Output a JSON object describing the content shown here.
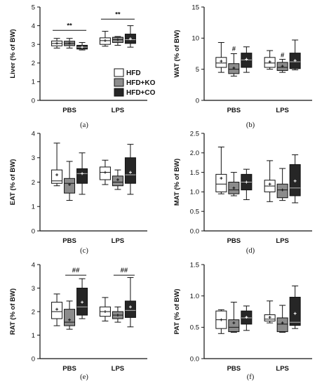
{
  "colors": {
    "HFD": "#ffffff",
    "HFD+KO": "#8c8c8c",
    "HFD+CO": "#262626",
    "stroke": "#111111"
  },
  "legend": {
    "items": [
      {
        "label": "HFD",
        "color": "#ffffff"
      },
      {
        "label": "HFD+KO",
        "color": "#8c8c8c"
      },
      {
        "label": "HFD+CO",
        "color": "#262626"
      }
    ]
  },
  "chart_data": [
    {
      "type": "boxplot",
      "panel": "(a)",
      "ylabel": "Liver (% of BW)",
      "ylim": [
        0,
        5
      ],
      "yticks": [
        0,
        1,
        2,
        3,
        4,
        5
      ],
      "ytick_labels": [
        "0",
        "1",
        "2",
        "3",
        "4",
        "5"
      ],
      "groups": [
        "PBS",
        "LPS"
      ],
      "series": [
        {
          "name": "HFD",
          "boxes": [
            {
              "whisker_low": 2.8,
              "q1": 2.92,
              "median": 3.05,
              "q3": 3.18,
              "whisker_high": 3.32,
              "mean": 3.06
            },
            {
              "whisker_low": 2.9,
              "q1": 3.0,
              "median": 3.2,
              "q3": 3.35,
              "whisker_high": 3.7,
              "mean": 3.2
            }
          ]
        },
        {
          "name": "HFD+KO",
          "boxes": [
            {
              "whisker_low": 2.8,
              "q1": 2.93,
              "median": 3.05,
              "q3": 3.17,
              "whisker_high": 3.32,
              "mean": 3.06
            },
            {
              "whisker_low": 2.95,
              "q1": 3.1,
              "median": 3.25,
              "q3": 3.38,
              "whisker_high": 3.42,
              "mean": 3.25
            }
          ]
        },
        {
          "name": "HFD+CO",
          "boxes": [
            {
              "whisker_low": 2.7,
              "q1": 2.75,
              "median": 2.85,
              "q3": 2.95,
              "whisker_high": 3.1,
              "mean": 2.85
            },
            {
              "whisker_low": 2.85,
              "q1": 3.05,
              "median": 3.25,
              "q3": 3.55,
              "whisker_high": 4.0,
              "mean": 3.3
            }
          ]
        }
      ],
      "significance": [
        {
          "label": "**",
          "from_group": 0,
          "from_series": 0,
          "to_group": 0,
          "to_series": 2,
          "y": 3.75
        },
        {
          "label": "**",
          "from_group": 1,
          "from_series": 0,
          "to_group": 1,
          "to_series": 2,
          "y": 4.35
        }
      ],
      "legend": true
    },
    {
      "type": "boxplot",
      "panel": "(b)",
      "ylabel": "WAT  (% of BW)",
      "ylim": [
        0,
        15
      ],
      "yticks": [
        0,
        5,
        10,
        15
      ],
      "ytick_labels": [
        "0",
        "5",
        "10",
        "15"
      ],
      "groups": [
        "PBS",
        "LPS"
      ],
      "series": [
        {
          "name": "HFD",
          "boxes": [
            {
              "whisker_low": 4.5,
              "q1": 5.3,
              "median": 6.0,
              "q3": 6.9,
              "whisker_high": 9.3,
              "mean": 6.3
            },
            {
              "whisker_low": 5.0,
              "q1": 5.3,
              "median": 6.0,
              "q3": 6.9,
              "whisker_high": 8.0,
              "mean": 6.2
            }
          ]
        },
        {
          "name": "HFD+KO",
          "boxes": [
            {
              "whisker_low": 3.9,
              "q1": 4.3,
              "median": 5.0,
              "q3": 5.9,
              "whisker_high": 7.5,
              "mean": 5.2
            },
            {
              "whisker_low": 4.5,
              "q1": 4.8,
              "median": 5.3,
              "q3": 6.1,
              "whisker_high": 6.6,
              "mean": 5.5
            }
          ]
        },
        {
          "name": "HFD+CO",
          "boxes": [
            {
              "whisker_low": 4.5,
              "q1": 5.3,
              "median": 6.5,
              "q3": 7.6,
              "whisker_high": 8.6,
              "mean": 6.6
            },
            {
              "whisker_low": 4.9,
              "q1": 5.1,
              "median": 6.2,
              "q3": 7.6,
              "whisker_high": 9.7,
              "mean": 6.4
            }
          ]
        }
      ],
      "annotations": [
        {
          "label": "#",
          "group": 0,
          "series": 1,
          "y": 8.3
        },
        {
          "label": "#",
          "group": 1,
          "series": 1,
          "y": 7.3
        }
      ]
    },
    {
      "type": "boxplot",
      "panel": "(c)",
      "ylabel": "EAT (% of BW)",
      "ylim": [
        0,
        4
      ],
      "yticks": [
        0,
        1,
        2,
        3,
        4
      ],
      "ytick_labels": [
        "0",
        "1",
        "2",
        "3",
        "4"
      ],
      "groups": [
        "PBS",
        "LPS"
      ],
      "series": [
        {
          "name": "HFD",
          "boxes": [
            {
              "whisker_low": 1.85,
              "q1": 1.95,
              "median": 2.05,
              "q3": 2.5,
              "whisker_high": 3.6,
              "mean": 2.3
            },
            {
              "whisker_low": 1.9,
              "q1": 2.1,
              "median": 2.4,
              "q3": 2.62,
              "whisker_high": 2.9,
              "mean": 2.4
            }
          ]
        },
        {
          "name": "HFD+KO",
          "boxes": [
            {
              "whisker_low": 1.25,
              "q1": 1.55,
              "median": 1.95,
              "q3": 2.15,
              "whisker_high": 2.85,
              "mean": 1.9
            },
            {
              "whisker_low": 1.7,
              "q1": 1.85,
              "median": 2.0,
              "q3": 2.25,
              "whisker_high": 2.5,
              "mean": 2.1
            }
          ]
        },
        {
          "name": "HFD+CO",
          "boxes": [
            {
              "whisker_low": 1.5,
              "q1": 1.95,
              "median": 2.35,
              "q3": 2.55,
              "whisker_high": 3.2,
              "mean": 2.35
            },
            {
              "whisker_low": 1.5,
              "q1": 1.95,
              "median": 2.3,
              "q3": 3.0,
              "whisker_high": 3.55,
              "mean": 2.4
            }
          ]
        }
      ]
    },
    {
      "type": "boxplot",
      "panel": "(d)",
      "ylabel": "MAT (% of BW)",
      "ylim": [
        0,
        2.5
      ],
      "yticks": [
        0,
        0.5,
        1.0,
        1.5,
        2.0,
        2.5
      ],
      "ytick_labels": [
        "0.0",
        "0.5",
        "1.0",
        "1.5",
        "2.0",
        "2.5"
      ],
      "groups": [
        "PBS",
        "LPS"
      ],
      "series": [
        {
          "name": "HFD",
          "boxes": [
            {
              "whisker_low": 0.95,
              "q1": 1.0,
              "median": 1.2,
              "q3": 1.45,
              "whisker_high": 2.15,
              "mean": 1.35
            },
            {
              "whisker_low": 0.75,
              "q1": 1.0,
              "median": 1.15,
              "q3": 1.3,
              "whisker_high": 1.8,
              "mean": 1.2
            }
          ]
        },
        {
          "name": "HFD+KO",
          "boxes": [
            {
              "whisker_low": 0.9,
              "q1": 0.95,
              "median": 1.05,
              "q3": 1.25,
              "whisker_high": 1.5,
              "mean": 1.1
            },
            {
              "whisker_low": 0.78,
              "q1": 0.85,
              "median": 1.05,
              "q3": 1.2,
              "whisker_high": 1.6,
              "mean": 1.05
            }
          ]
        },
        {
          "name": "HFD+CO",
          "boxes": [
            {
              "whisker_low": 0.8,
              "q1": 1.05,
              "median": 1.25,
              "q3": 1.45,
              "whisker_high": 1.58,
              "mean": 1.25
            },
            {
              "whisker_low": 0.72,
              "q1": 0.9,
              "median": 1.1,
              "q3": 1.7,
              "whisker_high": 1.95,
              "mean": 1.28
            }
          ]
        }
      ]
    },
    {
      "type": "boxplot",
      "panel": "(e)",
      "ylabel": "RAT (% of BW)",
      "ylim": [
        0,
        4
      ],
      "yticks": [
        0,
        1,
        2,
        3,
        4
      ],
      "ytick_labels": [
        "0",
        "1",
        "2",
        "3",
        "4"
      ],
      "groups": [
        "PBS",
        "LPS"
      ],
      "series": [
        {
          "name": "HFD",
          "boxes": [
            {
              "whisker_low": 1.4,
              "q1": 1.7,
              "median": 2.0,
              "q3": 2.4,
              "whisker_high": 2.75,
              "mean": 2.1
            },
            {
              "whisker_low": 1.6,
              "q1": 1.8,
              "median": 2.0,
              "q3": 2.2,
              "whisker_high": 2.6,
              "mean": 2.0
            }
          ]
        },
        {
          "name": "HFD+KO",
          "boxes": [
            {
              "whisker_low": 1.25,
              "q1": 1.4,
              "median": 1.55,
              "q3": 2.1,
              "whisker_high": 2.45,
              "mean": 1.65
            },
            {
              "whisker_low": 1.55,
              "q1": 1.7,
              "median": 1.85,
              "q3": 2.0,
              "whisker_high": 2.2,
              "mean": 1.85
            }
          ]
        },
        {
          "name": "HFD+CO",
          "boxes": [
            {
              "whisker_low": 1.7,
              "q1": 1.85,
              "median": 2.2,
              "q3": 3.0,
              "whisker_high": 3.4,
              "mean": 2.4
            },
            {
              "whisker_low": 1.35,
              "q1": 1.75,
              "median": 2.05,
              "q3": 2.45,
              "whisker_high": 3.45,
              "mean": 2.2
            }
          ]
        }
      ],
      "significance": [
        {
          "label": "##",
          "from_group": 0,
          "from_series": 1,
          "to_group": 0,
          "to_series": 2,
          "y": 3.55
        },
        {
          "label": "##",
          "from_group": 1,
          "from_series": 1,
          "to_group": 1,
          "to_series": 2,
          "y": 3.55
        }
      ]
    },
    {
      "type": "boxplot",
      "panel": "(f)",
      "ylabel": "PAT (% of BW)",
      "ylim": [
        0,
        1.5
      ],
      "yticks": [
        0,
        0.5,
        1.0,
        1.5
      ],
      "ytick_labels": [
        "0.0",
        "0.5",
        "1.0",
        "1.5"
      ],
      "groups": [
        "PBS",
        "LPS"
      ],
      "series": [
        {
          "name": "HFD",
          "boxes": [
            {
              "whisker_low": 0.4,
              "q1": 0.48,
              "median": 0.62,
              "q3": 0.76,
              "whisker_high": 0.78,
              "mean": 0.62
            },
            {
              "whisker_low": 0.57,
              "q1": 0.6,
              "median": 0.63,
              "q3": 0.7,
              "whisker_high": 0.92,
              "mean": 0.66
            }
          ]
        },
        {
          "name": "HFD+KO",
          "boxes": [
            {
              "whisker_low": 0.42,
              "q1": 0.43,
              "median": 0.5,
              "q3": 0.62,
              "whisker_high": 0.9,
              "mean": 0.57
            },
            {
              "whisker_low": 0.42,
              "q1": 0.43,
              "median": 0.55,
              "q3": 0.65,
              "whisker_high": 0.85,
              "mean": 0.57
            }
          ]
        },
        {
          "name": "HFD+CO",
          "boxes": [
            {
              "whisker_low": 0.45,
              "q1": 0.55,
              "median": 0.65,
              "q3": 0.76,
              "whisker_high": 0.84,
              "mean": 0.66
            },
            {
              "whisker_low": 0.48,
              "q1": 0.53,
              "median": 0.58,
              "q3": 0.98,
              "whisker_high": 1.16,
              "mean": 0.72
            }
          ]
        }
      ]
    }
  ]
}
